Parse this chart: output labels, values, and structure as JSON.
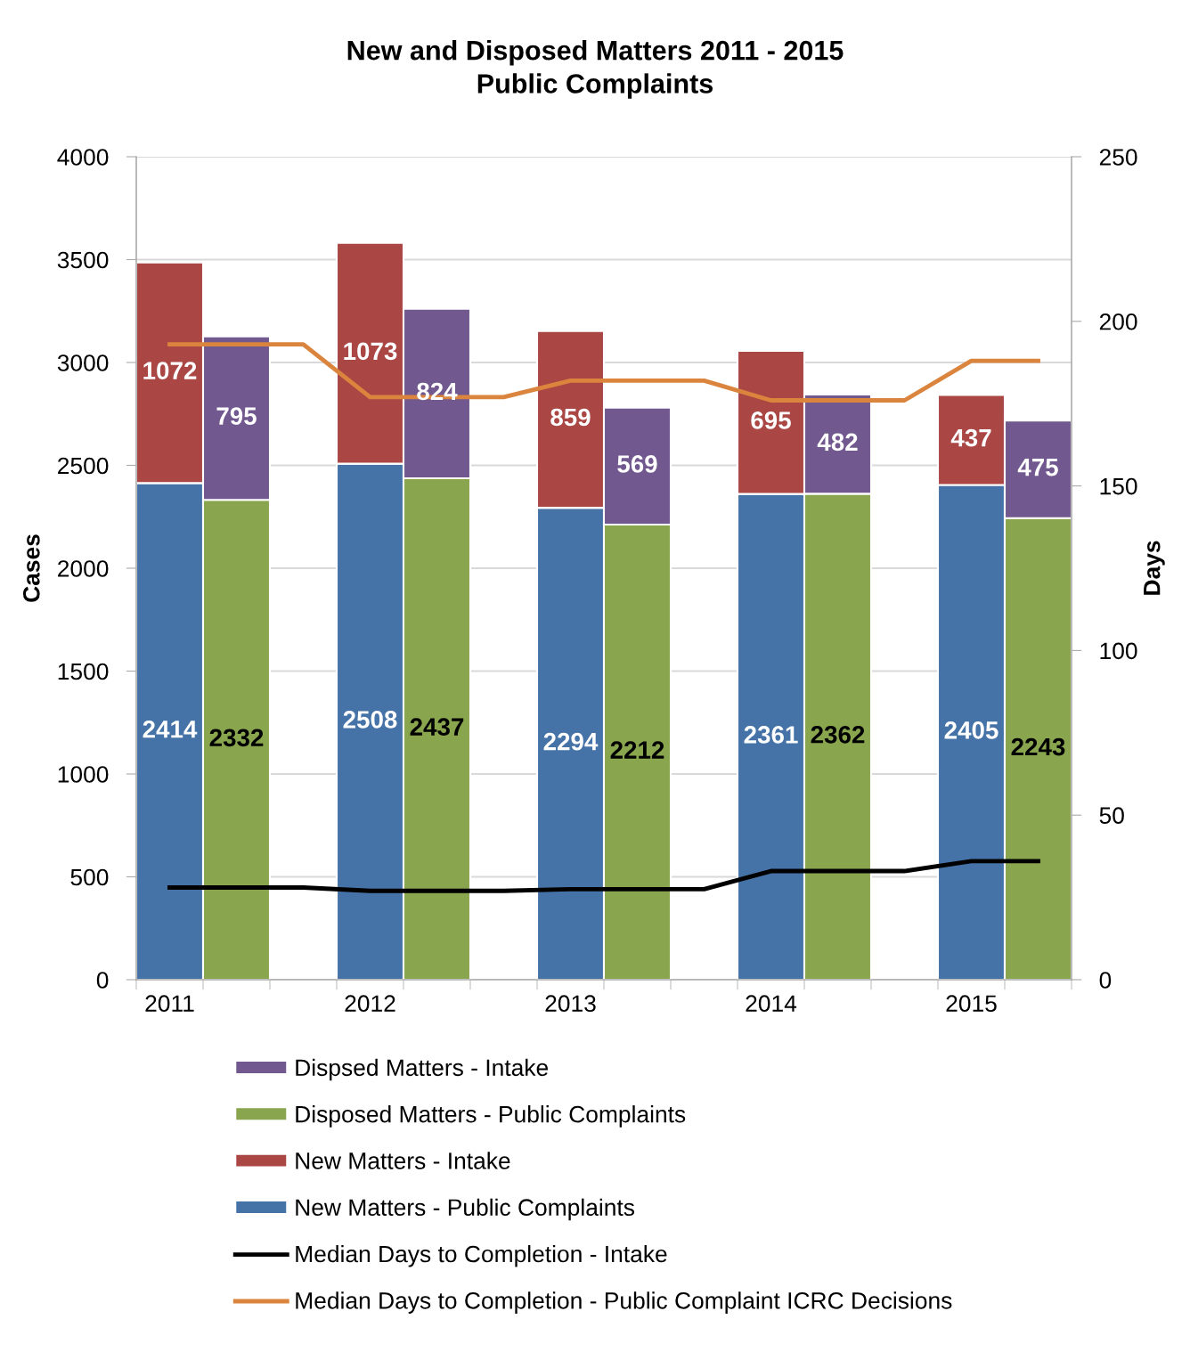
{
  "chart_data": {
    "type": "bar",
    "title": "New and Disposed Matters 2011 - 2015\nPublic Complaints",
    "ylabel": "Cases",
    "y2label": "Days",
    "categories": [
      "2011",
      null,
      null,
      "2012",
      null,
      null,
      "2013",
      null,
      null,
      "2014",
      null,
      null,
      "2015",
      null
    ],
    "stacked": true,
    "grid": "y",
    "legend": "bottom",
    "ylim": [
      0,
      4000
    ],
    "yticks": [
      0,
      500,
      1000,
      1500,
      2000,
      2500,
      3000,
      3500,
      4000
    ],
    "y2lim": [
      0,
      250
    ],
    "y2ticks": [
      0,
      50,
      100,
      150,
      200,
      250
    ],
    "series": [
      {
        "name": "New Matters - Public Complaints",
        "color": "#4573a7",
        "values": [
          2414,
          null,
          null,
          2508,
          null,
          null,
          2294,
          null,
          null,
          2361,
          null,
          null,
          2405,
          null
        ],
        "value_labels": [
          "2414",
          null,
          null,
          "2508",
          null,
          null,
          "2294",
          null,
          null,
          "2361",
          null,
          null,
          "2405",
          null
        ]
      },
      {
        "name": "New Matters - Intake",
        "color": "#aa4644",
        "values": [
          1072,
          null,
          null,
          1073,
          null,
          null,
          859,
          null,
          null,
          695,
          null,
          null,
          437,
          null
        ],
        "value_labels": [
          "1072",
          null,
          null,
          "1073",
          null,
          null,
          "859",
          null,
          null,
          "695",
          null,
          null,
          "437",
          null
        ]
      },
      {
        "name": "Disposed Matters - Public Complaints",
        "color": "#89a54e",
        "values": [
          null,
          2332,
          null,
          null,
          2437,
          null,
          null,
          2212,
          null,
          null,
          2362,
          null,
          null,
          2243
        ],
        "value_labels": [
          null,
          "2332",
          null,
          null,
          "2437",
          null,
          null,
          "2212",
          null,
          null,
          "2362",
          null,
          null,
          "2243"
        ]
      },
      {
        "name": "Dispsed Matters - Intake",
        "color": "#71588f",
        "values": [
          null,
          795,
          null,
          null,
          824,
          null,
          null,
          569,
          null,
          null,
          482,
          null,
          null,
          475
        ],
        "value_labels": [
          null,
          "795",
          null,
          null,
          "824",
          null,
          null,
          "569",
          null,
          null,
          "482",
          null,
          null,
          "475"
        ]
      },
      {
        "name": "Median Days to Completion - Intake",
        "type": "line",
        "axis": "y2",
        "color": "#000000",
        "values": [
          28,
          28,
          28,
          27,
          27,
          27,
          27.5,
          27.5,
          27.5,
          33,
          33,
          33,
          36,
          36
        ]
      },
      {
        "name": "Median Days to Completion - Public Complaint ICRC Decisions",
        "type": "line",
        "axis": "y2",
        "color": "#db843d",
        "values": [
          193,
          193,
          193,
          177,
          177,
          177,
          182,
          182,
          182,
          176,
          176,
          176,
          188,
          188
        ]
      }
    ]
  }
}
